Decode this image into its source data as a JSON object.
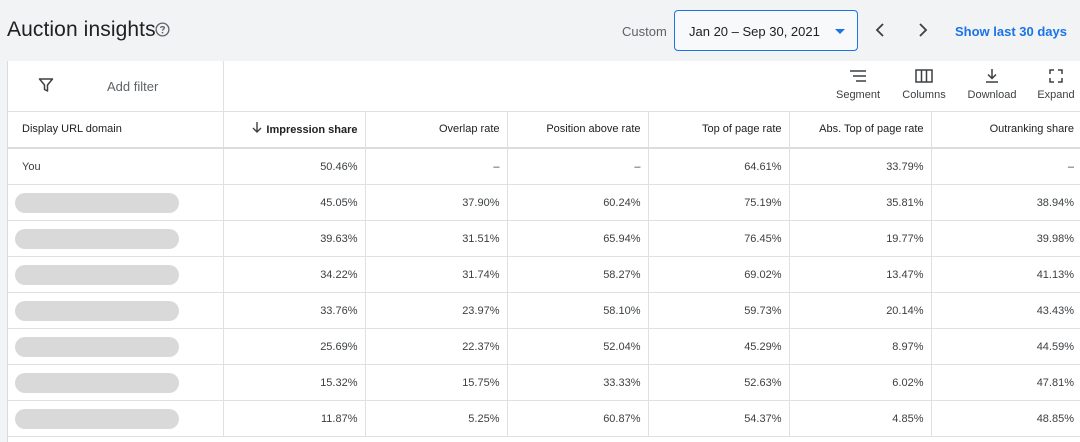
{
  "header": {
    "title": "Auction insights",
    "custom_label": "Custom",
    "date_range": "Jan 20 – Sep 30, 2021",
    "show_last": "Show last 30 days"
  },
  "toolbar": {
    "add_filter": "Add filter",
    "segment": "Segment",
    "columns": "Columns",
    "download": "Download",
    "expand": "Expand"
  },
  "table": {
    "headers": [
      "Display URL domain",
      "Impression share",
      "Overlap rate",
      "Position above rate",
      "Top of page rate",
      "Abs. Top of page rate",
      "Outranking share"
    ],
    "rows": [
      [
        "You",
        "50.46%",
        "–",
        "–",
        "64.61%",
        "33.79%",
        "–"
      ],
      [
        "",
        "45.05%",
        "37.90%",
        "60.24%",
        "75.19%",
        "35.81%",
        "38.94%"
      ],
      [
        "",
        "39.63%",
        "31.51%",
        "65.94%",
        "76.45%",
        "19.77%",
        "39.98%"
      ],
      [
        "",
        "34.22%",
        "31.74%",
        "58.27%",
        "69.02%",
        "13.47%",
        "41.13%"
      ],
      [
        "",
        "33.76%",
        "23.97%",
        "58.10%",
        "59.73%",
        "20.14%",
        "43.43%"
      ],
      [
        "",
        "25.69%",
        "22.37%",
        "52.04%",
        "45.29%",
        "8.97%",
        "44.59%"
      ],
      [
        "",
        "15.32%",
        "15.75%",
        "33.33%",
        "52.63%",
        "6.02%",
        "47.81%"
      ],
      [
        "",
        "11.87%",
        "5.25%",
        "60.87%",
        "54.37%",
        "4.85%",
        "48.85%"
      ]
    ]
  },
  "colors": {
    "accent": "#1a73e8",
    "redaction": "#d9d9d9"
  }
}
